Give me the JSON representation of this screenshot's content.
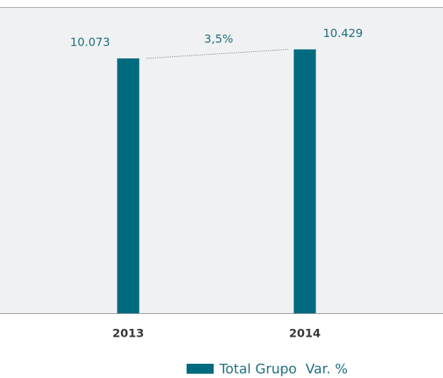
{
  "chart_data": {
    "type": "bar",
    "categories": [
      "2013",
      "2014"
    ],
    "series": [
      {
        "name": "Total Grupo",
        "color": "#006b7e",
        "values": [
          10073,
          10429
        ],
        "value_labels": [
          "10.073",
          "10.429"
        ]
      }
    ],
    "variation": {
      "name": "Var. %",
      "value": 3.5,
      "label": "3,5%"
    },
    "ylim": [
      0,
      12100
    ]
  }
}
